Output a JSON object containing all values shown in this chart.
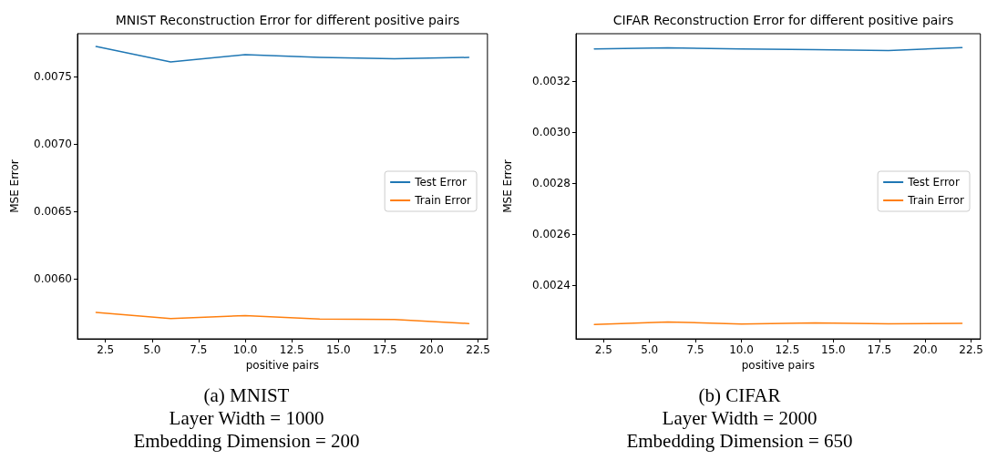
{
  "chart_data": [
    {
      "type": "line",
      "title": "MNIST Reconstruction Error for different positive pairs",
      "xlabel": "positive pairs",
      "ylabel": "MSE Error",
      "x": [
        2,
        6,
        10,
        14,
        18,
        22
      ],
      "series": [
        {
          "name": "Test Error",
          "color": "#1f77b4",
          "values": [
            0.007723,
            0.007608,
            0.007662,
            0.007642,
            0.007632,
            0.007642
          ]
        },
        {
          "name": "Train Error",
          "color": "#ff7f0e",
          "values": [
            0.00575,
            0.005705,
            0.005726,
            0.005701,
            0.005698,
            0.005668
          ]
        }
      ],
      "xlim": [
        1,
        23
      ],
      "xticks": [
        2.5,
        {
          "value": 5,
          "label": "5.0"
        },
        7.5,
        {
          "value": 10,
          "label": "10.0"
        },
        12.5,
        {
          "value": 15,
          "label": "15.0"
        },
        17.5,
        {
          "value": 20,
          "label": "20.0"
        },
        22.5
      ],
      "ylim": [
        0.005554,
        0.007818
      ],
      "yticks": [
        {
          "value": 0.006,
          "label": "0.0060"
        },
        {
          "value": 0.0065,
          "label": "0.0065"
        },
        {
          "value": 0.007,
          "label": "0.0070"
        },
        {
          "value": 0.0075,
          "label": "0.0075"
        }
      ],
      "legend": "right",
      "grid": false,
      "marker": "none",
      "line_style": "solid",
      "annotations": [
        "(a) MNIST",
        "Layer Width = 1000",
        "Embedding Dimension = 200"
      ]
    },
    {
      "type": "line",
      "title": "CIFAR Reconstruction Error for different positive pairs",
      "xlabel": "positive pairs",
      "ylabel": "MSE Error",
      "x": [
        2,
        6,
        10,
        14,
        18,
        22
      ],
      "series": [
        {
          "name": "Test Error",
          "color": "#1f77b4",
          "values": [
            0.003325,
            0.00333,
            0.003325,
            0.003323,
            0.003319,
            0.003331
          ]
        },
        {
          "name": "Train Error",
          "color": "#ff7f0e",
          "values": [
            0.002246,
            0.002256,
            0.002248,
            0.002252,
            0.002249,
            0.002251
          ]
        }
      ],
      "xlim": [
        1,
        23
      ],
      "xticks": [
        2.5,
        {
          "value": 5,
          "label": "5.0"
        },
        7.5,
        {
          "value": 10,
          "label": "10.0"
        },
        12.5,
        {
          "value": 15,
          "label": "15.0"
        },
        17.5,
        {
          "value": 20,
          "label": "20.0"
        },
        22.5
      ],
      "ylim": [
        0.00219,
        0.003385
      ],
      "yticks": [
        {
          "value": 0.0024,
          "label": "0.0024"
        },
        {
          "value": 0.0026,
          "label": "0.0026"
        },
        {
          "value": 0.0028,
          "label": "0.0028"
        },
        {
          "value": 0.003,
          "label": "0.0030"
        },
        {
          "value": 0.0032,
          "label": "0.0032"
        }
      ],
      "legend": "right",
      "grid": false,
      "marker": "none",
      "line_style": "solid",
      "annotations": [
        "(b) CIFAR",
        "Layer Width = 2000",
        "Embedding Dimension = 650"
      ]
    }
  ]
}
